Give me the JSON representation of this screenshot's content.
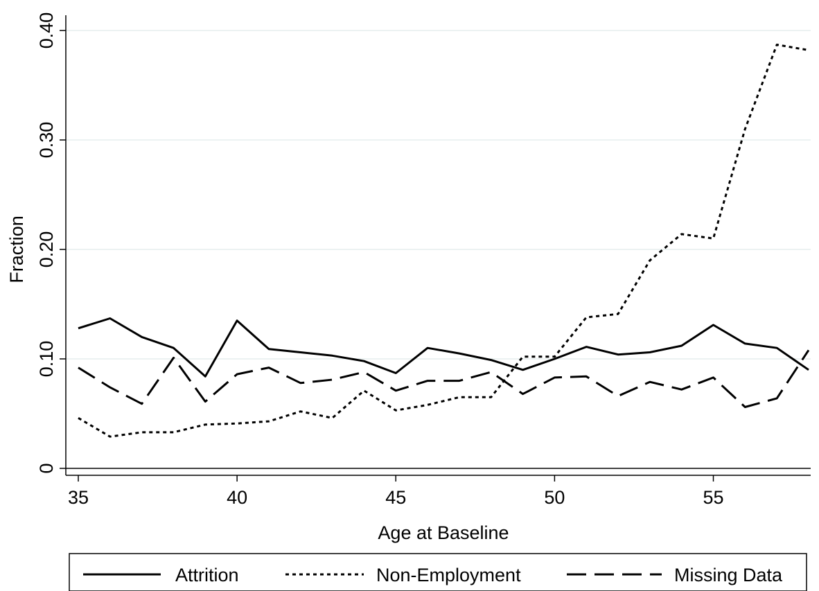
{
  "chart_data": {
    "type": "line",
    "title": "",
    "xlabel": "Age at Baseline",
    "ylabel": "Fraction",
    "xlim": [
      35,
      58
    ],
    "ylim": [
      0,
      0.4
    ],
    "x_ticks": [
      35,
      40,
      45,
      50,
      55
    ],
    "x_tick_labels": [
      "35",
      "40",
      "45",
      "50",
      "55"
    ],
    "y_ticks": [
      0,
      0.1,
      0.2,
      0.3,
      0.4
    ],
    "y_tick_labels": [
      "0",
      "0.10",
      "0.20",
      "0.30",
      "0.40"
    ],
    "grid": true,
    "legend_position": "bottom",
    "x": [
      35,
      36,
      37,
      38,
      39,
      40,
      41,
      42,
      43,
      44,
      45,
      46,
      47,
      48,
      49,
      50,
      51,
      52,
      53,
      54,
      55,
      56,
      57,
      58
    ],
    "series": [
      {
        "name": "Attrition",
        "style": "solid",
        "color": "#000000",
        "values": [
          0.128,
          0.137,
          0.12,
          0.11,
          0.084,
          0.135,
          0.109,
          0.106,
          0.103,
          0.098,
          0.087,
          0.11,
          0.105,
          0.099,
          0.09,
          0.1,
          0.111,
          0.104,
          0.106,
          0.112,
          0.131,
          0.114,
          0.11,
          0.09
        ]
      },
      {
        "name": "Non-Employment",
        "style": "dotted",
        "color": "#000000",
        "values": [
          0.046,
          0.029,
          0.033,
          0.033,
          0.04,
          0.041,
          0.043,
          0.052,
          0.046,
          0.071,
          0.053,
          0.058,
          0.065,
          0.065,
          0.102,
          0.102,
          0.138,
          0.141,
          0.19,
          0.214,
          0.21,
          0.31,
          0.387,
          0.382
        ]
      },
      {
        "name": "Missing Data",
        "style": "dashed",
        "color": "#000000",
        "values": [
          0.092,
          0.074,
          0.059,
          0.101,
          0.061,
          0.086,
          0.092,
          0.078,
          0.081,
          0.088,
          0.071,
          0.08,
          0.08,
          0.088,
          0.068,
          0.083,
          0.084,
          0.066,
          0.079,
          0.072,
          0.083,
          0.056,
          0.064,
          0.108
        ]
      }
    ]
  }
}
